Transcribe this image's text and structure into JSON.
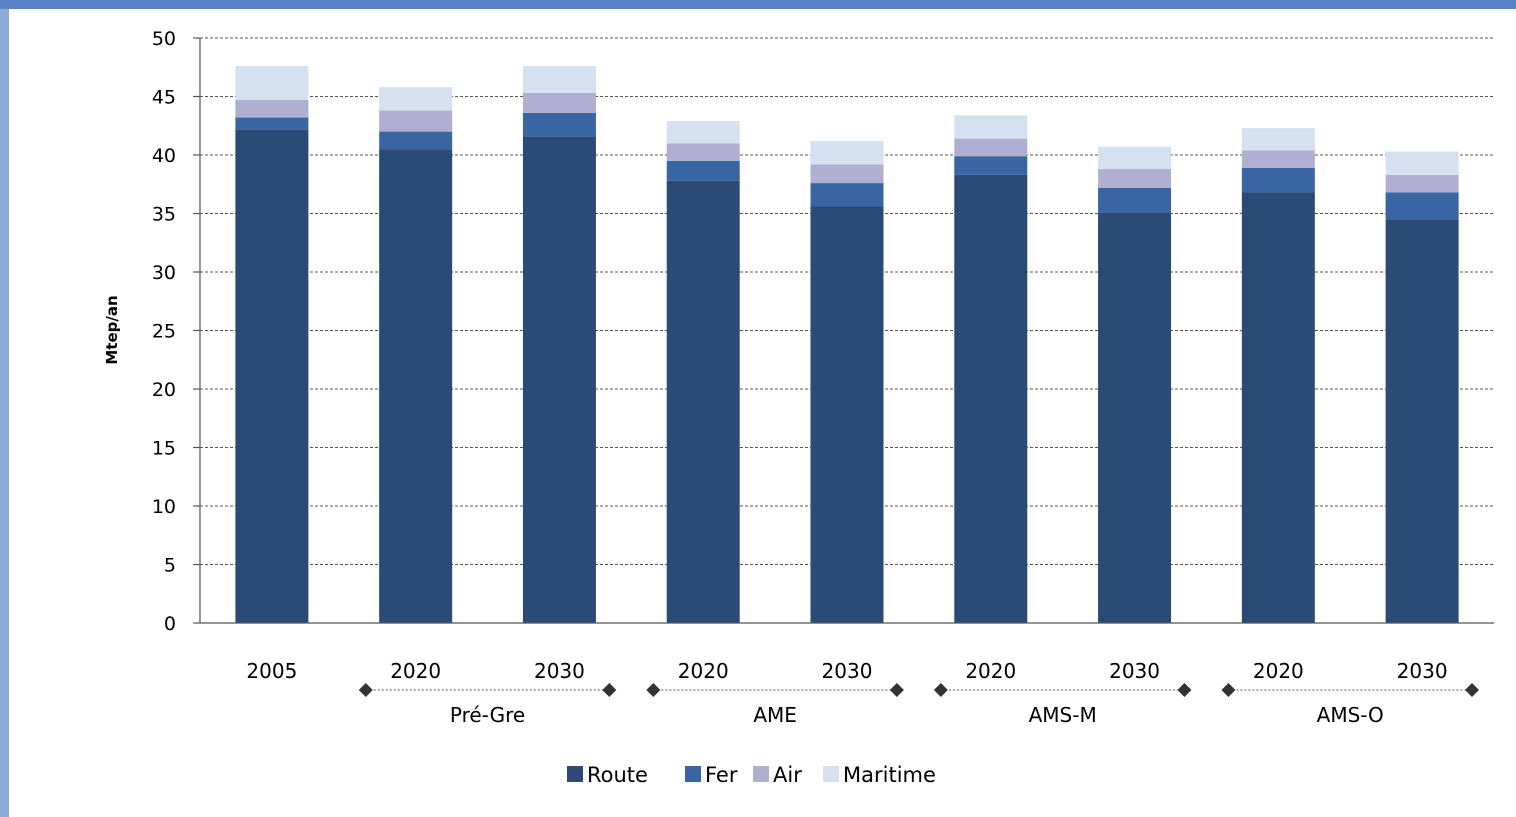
{
  "chart_data": {
    "type": "bar",
    "stacked": true,
    "title": "",
    "xlabel": "",
    "ylabel": "Mtep/an",
    "ylim": [
      0,
      50
    ],
    "yticks": [
      0,
      5,
      10,
      15,
      20,
      25,
      30,
      35,
      40,
      45,
      50
    ],
    "grid": true,
    "legend_position": "bottom",
    "categories": [
      "2005",
      "2020",
      "2030",
      "2020",
      "2030",
      "2020",
      "2030",
      "2020",
      "2030"
    ],
    "groups": [
      {
        "label": "",
        "start": 0,
        "end": 0
      },
      {
        "label": "Pré-Gre",
        "start": 1,
        "end": 2
      },
      {
        "label": "AME",
        "start": 3,
        "end": 4
      },
      {
        "label": "AMS-M",
        "start": 5,
        "end": 6
      },
      {
        "label": "AMS-O",
        "start": 7,
        "end": 8
      }
    ],
    "series": [
      {
        "name": "Route",
        "color": "#2c4a76",
        "values": [
          42.2,
          40.5,
          41.6,
          37.8,
          35.6,
          38.3,
          35.1,
          36.8,
          34.5
        ]
      },
      {
        "name": "Fer",
        "color": "#3a65a3",
        "values": [
          1.0,
          1.5,
          2.0,
          1.7,
          2.0,
          1.6,
          2.1,
          2.1,
          2.3
        ]
      },
      {
        "name": "Air",
        "color": "#b0afd1",
        "values": [
          1.5,
          1.8,
          1.7,
          1.5,
          1.6,
          1.5,
          1.6,
          1.5,
          1.5
        ]
      },
      {
        "name": "Maritime",
        "color": "#d6e1f0",
        "values": [
          2.9,
          2.0,
          2.3,
          1.9,
          2.0,
          2.0,
          1.9,
          1.9,
          2.0
        ]
      }
    ]
  }
}
